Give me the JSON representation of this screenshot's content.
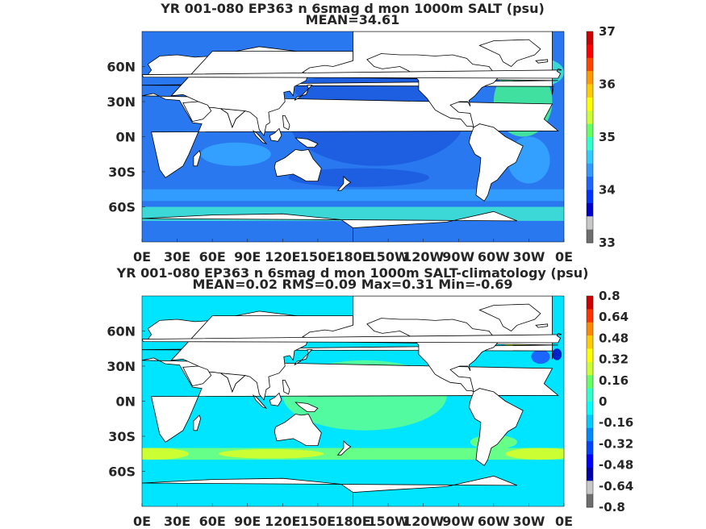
{
  "chart_data": [
    {
      "type": "heatmap",
      "title": "YR 001-080 EP363 n 6smag d mon 1000m SALT (psu)",
      "subtitle": "MEAN=34.61",
      "x_tick_labels": [
        "0E",
        "30E",
        "60E",
        "90E",
        "120E",
        "150E",
        "180E",
        "150W",
        "120W",
        "90W",
        "60W",
        "30W",
        "0E"
      ],
      "y_tick_labels": [
        "60N",
        "30N",
        "0N",
        "30S",
        "60S"
      ],
      "colorbar": {
        "ticks": [
          "37",
          "36",
          "35",
          "34",
          "33"
        ],
        "range": [
          33,
          37
        ],
        "colors": [
          "#0000cc",
          "#0033ff",
          "#1a66ff",
          "#3399ff",
          "#33ccff",
          "#33ffcc",
          "#66ff66",
          "#ccff33",
          "#ffff00",
          "#ffcc00",
          "#ff9900",
          "#ff4400",
          "#ff0000",
          "#cc0000"
        ],
        "below_colors": [
          "#c8c8c8",
          "#6e6e6e"
        ]
      },
      "field_colors": {
        "background": "#2a78f0",
        "deep": "#1d5fe0",
        "mid": "#33a0ff",
        "light": "#3cd8d8",
        "atlantic": "#40e0a0"
      },
      "summary": {
        "mean": 34.61
      }
    },
    {
      "type": "heatmap",
      "title": "YR 001-080 EP363 n 6smag d mon 1000m SALT-climatology (psu)",
      "subtitle": "MEAN=0.02   RMS=0.09   Max=0.31   Min=-0.69",
      "x_tick_labels": [
        "0E",
        "30E",
        "60E",
        "90E",
        "120E",
        "150E",
        "180E",
        "150W",
        "120W",
        "90W",
        "60W",
        "30W",
        "0E"
      ],
      "y_tick_labels": [
        "60N",
        "30N",
        "0N",
        "30S",
        "60S"
      ],
      "colorbar": {
        "ticks": [
          "0.8",
          "0.64",
          "0.48",
          "0.32",
          "0.16",
          "0",
          "-0.16",
          "-0.32",
          "-0.48",
          "-0.64",
          "-0.8"
        ],
        "range": [
          -0.8,
          0.8
        ],
        "colors": [
          "#0000aa",
          "#0000ff",
          "#0044ff",
          "#0088ff",
          "#00ccff",
          "#00ffff",
          "#33ffcc",
          "#66ff66",
          "#ccff33",
          "#ffff00",
          "#ffcc00",
          "#ff8800",
          "#ff3300",
          "#cc0000"
        ],
        "below_colors": [
          "#c8c8c8",
          "#6e6e6e"
        ]
      },
      "field_colors": {
        "background": "#00e5ff",
        "green": "#66ff88",
        "yellow": "#ccff33",
        "blue": "#1a66ff",
        "deep": "#0022cc"
      },
      "summary": {
        "mean": 0.02,
        "rms": 0.09,
        "max": 0.31,
        "min": -0.69
      }
    }
  ]
}
